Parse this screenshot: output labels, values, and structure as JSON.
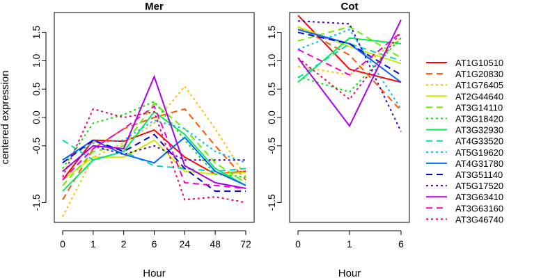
{
  "chart_data": [
    {
      "type": "line",
      "title": "Mer",
      "xlabel": "Hour",
      "ylabel": "centered expression",
      "categories": [
        "0",
        "1",
        "2",
        "6",
        "24",
        "48",
        "72"
      ],
      "ylim": [
        -1.85,
        1.85
      ],
      "yticks": [
        -1.5,
        -0.5,
        0.0,
        0.5,
        1.0,
        1.5
      ],
      "ytick_labels": [
        "-1.5",
        "-0.5",
        "0.0",
        "0.5",
        "1.0",
        "1.5"
      ],
      "series": [
        {
          "name": "AT1G10510",
          "color": "#ff0000",
          "dash": "solid",
          "values": [
            -1.1,
            -0.4,
            -0.42,
            -0.22,
            -0.7,
            -1.0,
            -0.95
          ]
        },
        {
          "name": "AT1G20830",
          "color": "#ff5500",
          "dash": "dashed",
          "values": [
            -1.45,
            -0.55,
            -0.2,
            0.0,
            0.15,
            -0.5,
            -1.1
          ]
        },
        {
          "name": "AT1G76405",
          "color": "#ffbb00",
          "dash": "dotted",
          "values": [
            -1.75,
            -0.7,
            -0.45,
            -0.1,
            0.55,
            -0.2,
            -1.05
          ]
        },
        {
          "name": "AT2G44640",
          "color": "#ccee00",
          "dash": "solid",
          "values": [
            -1.1,
            -0.7,
            -0.7,
            -0.4,
            -0.95,
            -1.0,
            -0.97
          ]
        },
        {
          "name": "AT3G14110",
          "color": "#66ee00",
          "dash": "dashed",
          "values": [
            -1.2,
            -0.6,
            -0.5,
            0.25,
            -0.2,
            -0.8,
            -1.15
          ]
        },
        {
          "name": "AT3G18420",
          "color": "#11dd00",
          "dash": "dotted",
          "values": [
            -0.9,
            -0.1,
            0.05,
            0.28,
            -0.4,
            -1.0,
            -1.05
          ]
        },
        {
          "name": "AT3G32930",
          "color": "#00ee55",
          "dash": "solid",
          "values": [
            -1.3,
            -0.75,
            -0.6,
            0.1,
            -0.3,
            -0.9,
            -1.2
          ]
        },
        {
          "name": "AT4G33520",
          "color": "#00ddaa",
          "dash": "dashed",
          "values": [
            -0.4,
            -0.75,
            -0.6,
            -0.85,
            -0.9,
            -0.95,
            -0.9
          ]
        },
        {
          "name": "AT5G19620",
          "color": "#00bbff",
          "dash": "dotted",
          "values": [
            -0.75,
            -0.45,
            -0.4,
            -0.05,
            -0.2,
            -0.6,
            -0.8
          ]
        },
        {
          "name": "AT4G31780",
          "color": "#0066ff",
          "dash": "solid",
          "values": [
            -0.75,
            -0.4,
            -0.65,
            -0.8,
            -0.35,
            -0.95,
            -1.2
          ]
        },
        {
          "name": "AT3G51140",
          "color": "#0000cc",
          "dash": "dashed",
          "values": [
            -0.8,
            -0.4,
            -0.6,
            -0.3,
            -0.9,
            -1.3,
            -1.3
          ]
        },
        {
          "name": "AT5G17520",
          "color": "#4400cc",
          "dash": "dotted",
          "values": [
            -0.95,
            -0.5,
            -0.65,
            -0.5,
            -0.75,
            -0.75,
            -0.75
          ]
        },
        {
          "name": "AT3G63410",
          "color": "#aa00ee",
          "dash": "solid",
          "values": [
            -0.95,
            -0.5,
            -0.55,
            0.72,
            -0.85,
            -1.15,
            -1.25
          ]
        },
        {
          "name": "AT3G63160",
          "color": "#ee00cc",
          "dash": "dashed",
          "values": [
            -1.1,
            -0.55,
            -0.2,
            0.2,
            -1.15,
            -1.2,
            -1.25
          ]
        },
        {
          "name": "AT3G46740",
          "color": "#ee0066",
          "dash": "dotted",
          "values": [
            -1.05,
            0.15,
            0.0,
            0.1,
            -1.45,
            -1.4,
            -1.5
          ]
        }
      ]
    },
    {
      "type": "line",
      "title": "Cot",
      "xlabel": "Hour",
      "ylabel": "",
      "categories": [
        "0",
        "1",
        "6"
      ],
      "ylim": [
        -1.85,
        1.85
      ],
      "yticks": [
        -1.5,
        -0.5,
        0.0,
        0.5,
        1.0,
        1.5
      ],
      "ytick_labels": [
        "-1.5",
        "-0.5",
        "0.0",
        "0.5",
        "1.0",
        "1.5"
      ],
      "series": [
        {
          "name": "AT1G10510",
          "color": "#ff0000",
          "dash": "solid",
          "values": [
            1.8,
            0.85,
            0.62
          ]
        },
        {
          "name": "AT1G20830",
          "color": "#ff5500",
          "dash": "dashed",
          "values": [
            1.6,
            1.1,
            0.12
          ]
        },
        {
          "name": "AT1G76405",
          "color": "#ffbb00",
          "dash": "dotted",
          "values": [
            0.9,
            0.75,
            1.4
          ]
        },
        {
          "name": "AT2G44640",
          "color": "#ccee00",
          "dash": "solid",
          "values": [
            1.6,
            1.25,
            0.95
          ]
        },
        {
          "name": "AT3G14110",
          "color": "#66ee00",
          "dash": "dashed",
          "values": [
            1.35,
            1.6,
            1.05
          ]
        },
        {
          "name": "AT3G18420",
          "color": "#11dd00",
          "dash": "dotted",
          "values": [
            0.72,
            0.45,
            1.4
          ]
        },
        {
          "name": "AT3G32930",
          "color": "#00ee55",
          "dash": "solid",
          "values": [
            0.62,
            1.4,
            1.3
          ]
        },
        {
          "name": "AT4G33520",
          "color": "#00ddaa",
          "dash": "dashed",
          "values": [
            0.7,
            1.3,
            1.0
          ]
        },
        {
          "name": "AT5G19620",
          "color": "#00bbff",
          "dash": "dotted",
          "values": [
            1.2,
            1.55,
            0.15
          ]
        },
        {
          "name": "AT4G31780",
          "color": "#0066ff",
          "dash": "solid",
          "values": [
            1.55,
            1.3,
            0.62
          ]
        },
        {
          "name": "AT3G51140",
          "color": "#0000cc",
          "dash": "dashed",
          "values": [
            1.5,
            1.3,
            0.75
          ]
        },
        {
          "name": "AT5G17520",
          "color": "#4400cc",
          "dash": "dotted",
          "values": [
            1.7,
            1.65,
            -0.25
          ]
        },
        {
          "name": "AT3G63410",
          "color": "#aa00ee",
          "dash": "solid",
          "values": [
            1.05,
            -0.15,
            1.72
          ]
        },
        {
          "name": "AT3G63160",
          "color": "#ee00cc",
          "dash": "dashed",
          "values": [
            1.2,
            0.75,
            1.5
          ]
        },
        {
          "name": "AT3G46740",
          "color": "#ee0066",
          "dash": "dotted",
          "values": [
            1.05,
            0.32,
            1.5
          ]
        }
      ]
    }
  ]
}
